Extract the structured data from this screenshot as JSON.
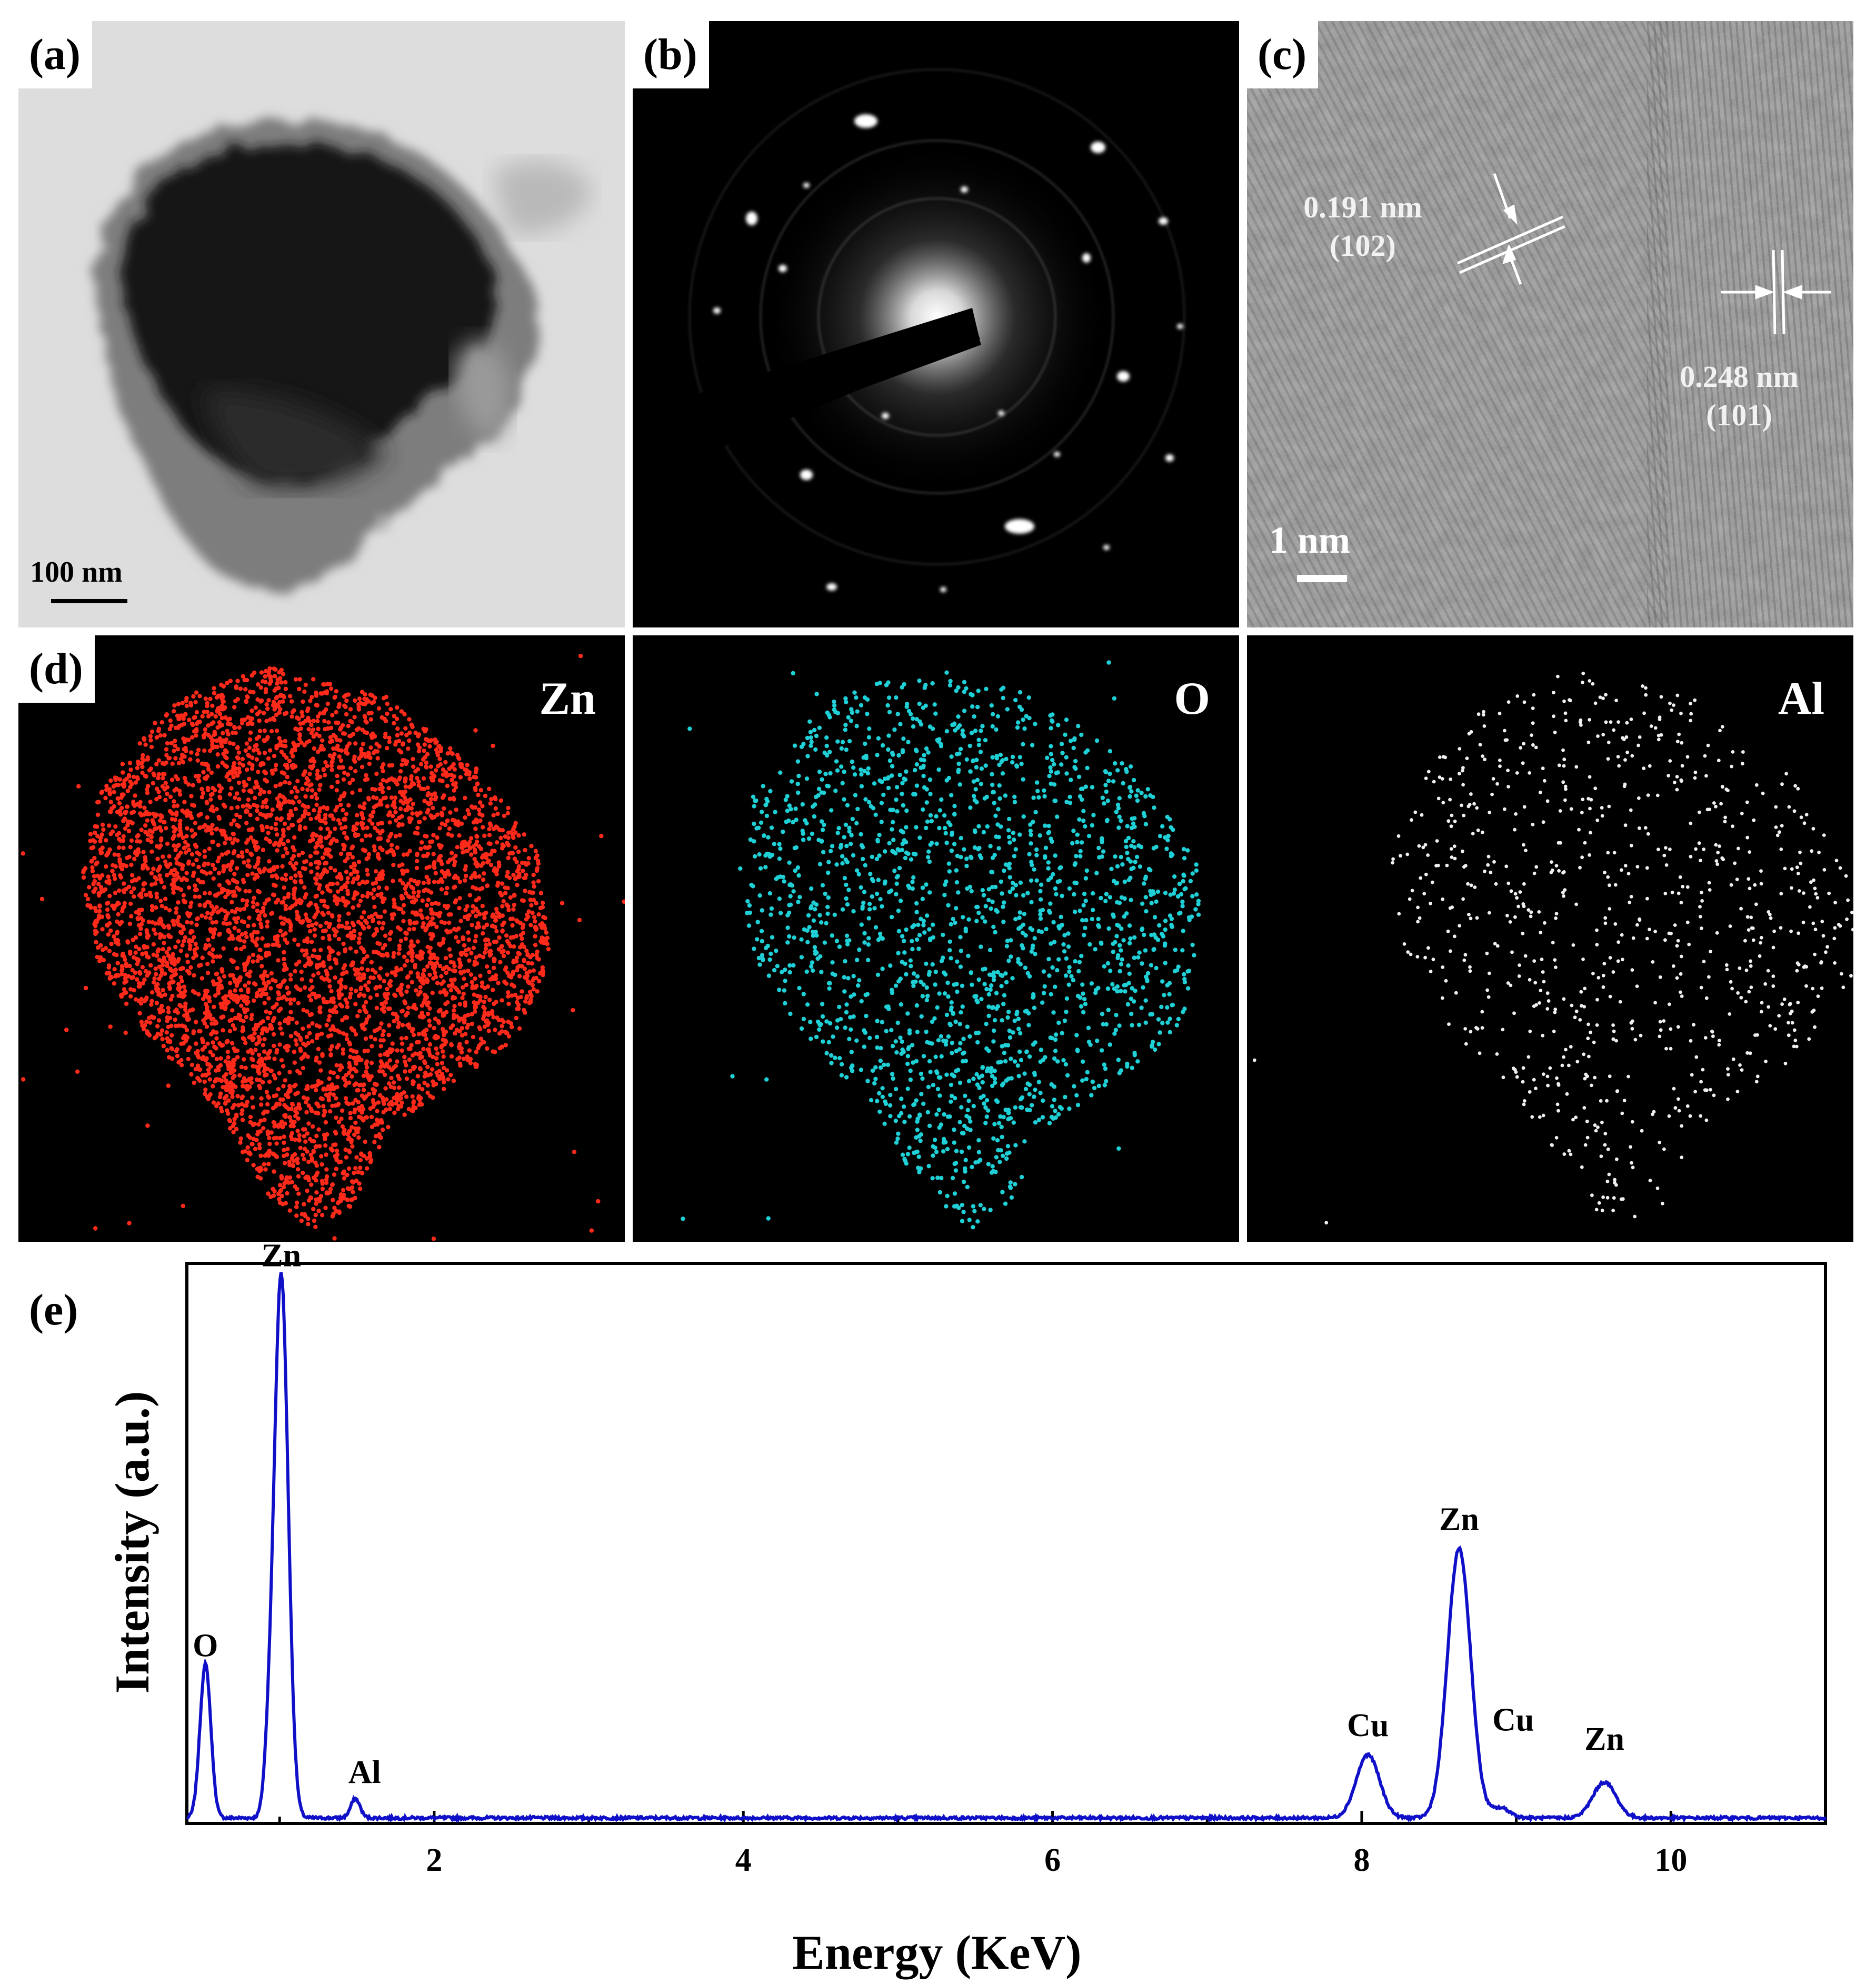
{
  "panels": {
    "a": {
      "label": "(a)",
      "scale_bar": "100 nm"
    },
    "b": {
      "label": "(b)"
    },
    "c": {
      "label": "(c)",
      "scale_bar": "1 nm",
      "fringe_1": {
        "spacing": "0.191 nm",
        "plane": "(102)"
      },
      "fringe_2": {
        "spacing": "0.248 nm",
        "plane": "(101)"
      }
    },
    "d": {
      "label": "(d)",
      "maps": [
        {
          "element": "Zn",
          "color": "#ff2a1a"
        },
        {
          "element": "O",
          "color": "#1fd0d6"
        },
        {
          "element": "Al",
          "color": "#f0f0f0"
        }
      ]
    },
    "e": {
      "label": "(e)"
    }
  },
  "chart_data": {
    "type": "line",
    "xlabel": "Energy (KeV)",
    "ylabel": "Intensity (a.u.)",
    "xlim": [
      0.4,
      11
    ],
    "ylim": [
      0,
      100
    ],
    "x_ticks": [
      2,
      4,
      6,
      8,
      10
    ],
    "y_ticks": [],
    "grid": false,
    "line_color": "#1010c8",
    "baseline": 1.0,
    "peaks": [
      {
        "x": 0.52,
        "height": 28,
        "width": 0.035
      },
      {
        "x": 0.93,
        "height": 8,
        "width": 0.03
      },
      {
        "x": 1.01,
        "height": 99,
        "width": 0.045
      },
      {
        "x": 1.49,
        "height": 3.5,
        "width": 0.03
      },
      {
        "x": 8.04,
        "height": 11.5,
        "width": 0.075
      },
      {
        "x": 8.63,
        "height": 49,
        "width": 0.075
      },
      {
        "x": 8.9,
        "height": 1.8,
        "width": 0.06
      },
      {
        "x": 9.57,
        "height": 6.5,
        "width": 0.075
      }
    ],
    "annotations": [
      {
        "text": "O",
        "x": 0.52,
        "y": 28
      },
      {
        "text": "Zn",
        "x": 1.01,
        "y": 99
      },
      {
        "text": "Al",
        "x": 1.55,
        "y": 5
      },
      {
        "text": "Cu",
        "x": 8.04,
        "y": 13.5
      },
      {
        "text": "Zn",
        "x": 8.63,
        "y": 51
      },
      {
        "text": "Cu",
        "x": 8.98,
        "y": 14.5
      },
      {
        "text": "Zn",
        "x": 9.57,
        "y": 11
      }
    ]
  }
}
